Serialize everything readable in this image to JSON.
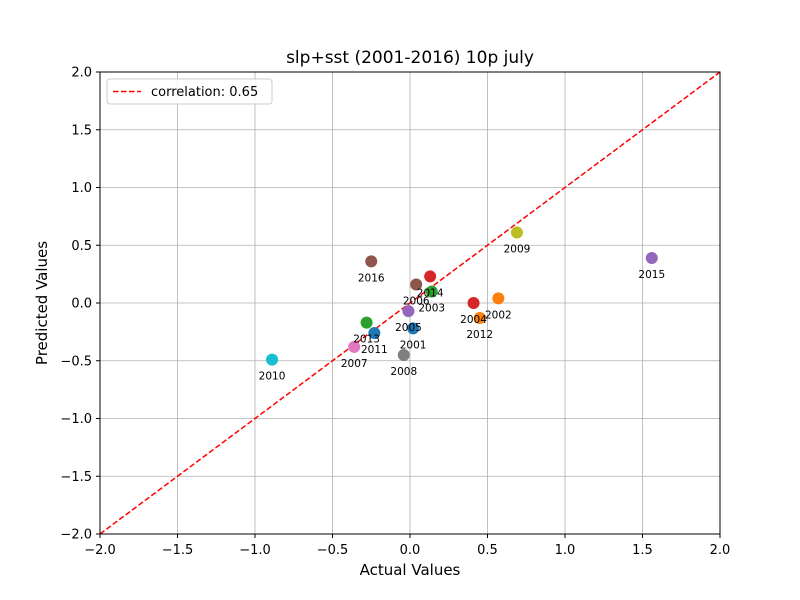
{
  "chart_data": {
    "type": "scatter",
    "title": "slp+sst (2001-2016) 10p july",
    "xlabel": "Actual Values",
    "ylabel": "Predicted Values",
    "xlim": [
      -2.0,
      2.0
    ],
    "ylim": [
      -2.0,
      2.0
    ],
    "x_ticks": [
      -2.0,
      -1.5,
      -1.0,
      -0.5,
      0.0,
      0.5,
      1.0,
      1.5,
      2.0
    ],
    "y_ticks": [
      -2.0,
      -1.5,
      -1.0,
      -0.5,
      0.0,
      0.5,
      1.0,
      1.5,
      2.0
    ],
    "x_tick_labels": [
      "−2.0",
      "−1.5",
      "−1.0",
      "−0.5",
      "0.0",
      "0.5",
      "1.0",
      "1.5",
      "2.0"
    ],
    "y_tick_labels": [
      "−2.0",
      "−1.5",
      "−1.0",
      "−0.5",
      "0.0",
      "0.5",
      "1.0",
      "1.5",
      "2.0"
    ],
    "grid": true,
    "legend": {
      "placement": "top-left",
      "entries": [
        {
          "label": "correlation: 0.65",
          "color": "#ff0000",
          "style": "dashed"
        }
      ]
    },
    "reference_line": {
      "from": [
        -2.0,
        -2.0
      ],
      "to": [
        2.0,
        2.0
      ],
      "color": "#ff0000",
      "style": "dashed"
    },
    "points": [
      {
        "label": "2001",
        "x": 0.02,
        "y": -0.22,
        "color": "#1f77b4"
      },
      {
        "label": "2002",
        "x": 0.57,
        "y": 0.04,
        "color": "#ff7f0e"
      },
      {
        "label": "2003",
        "x": 0.14,
        "y": 0.1,
        "color": "#2ca02c"
      },
      {
        "label": "2004",
        "x": 0.41,
        "y": 0.0,
        "color": "#d62728"
      },
      {
        "label": "2005",
        "x": -0.01,
        "y": -0.07,
        "color": "#9467bd"
      },
      {
        "label": "2006",
        "x": 0.04,
        "y": 0.16,
        "color": "#8c564b"
      },
      {
        "label": "2007",
        "x": -0.36,
        "y": -0.38,
        "color": "#e377c2"
      },
      {
        "label": "2008",
        "x": -0.04,
        "y": -0.45,
        "color": "#7f7f7f"
      },
      {
        "label": "2009",
        "x": 0.69,
        "y": 0.61,
        "color": "#bcbd22"
      },
      {
        "label": "2010",
        "x": -0.89,
        "y": -0.49,
        "color": "#17becf"
      },
      {
        "label": "2011",
        "x": -0.23,
        "y": -0.26,
        "color": "#1f77b4"
      },
      {
        "label": "2012",
        "x": 0.45,
        "y": -0.13,
        "color": "#ff7f0e"
      },
      {
        "label": "2013",
        "x": -0.28,
        "y": -0.17,
        "color": "#2ca02c"
      },
      {
        "label": "2014",
        "x": 0.13,
        "y": 0.23,
        "color": "#d62728"
      },
      {
        "label": "2015",
        "x": 1.56,
        "y": 0.39,
        "color": "#9467bd"
      },
      {
        "label": "2016",
        "x": -0.25,
        "y": 0.36,
        "color": "#8c564b"
      }
    ]
  }
}
